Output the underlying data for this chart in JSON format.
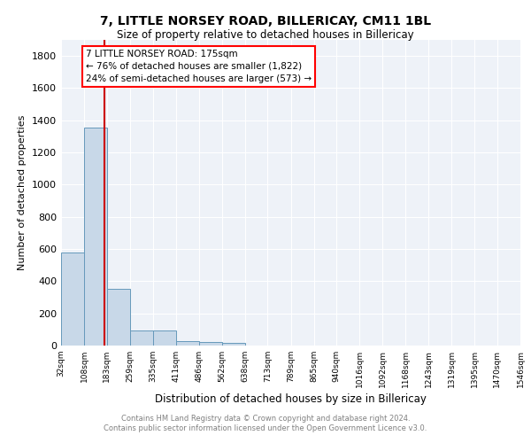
{
  "title": "7, LITTLE NORSEY ROAD, BILLERICAY, CM11 1BL",
  "subtitle": "Size of property relative to detached houses in Billericay",
  "xlabel": "Distribution of detached houses by size in Billericay",
  "ylabel": "Number of detached properties",
  "bin_edges": [
    32,
    108,
    183,
    259,
    335,
    411,
    486,
    562,
    638,
    713,
    789,
    865,
    940,
    1016,
    1092,
    1168,
    1243,
    1319,
    1395,
    1470,
    1546
  ],
  "bin_labels": [
    "32sqm",
    "108sqm",
    "183sqm",
    "259sqm",
    "335sqm",
    "411sqm",
    "486sqm",
    "562sqm",
    "638sqm",
    "713sqm",
    "789sqm",
    "865sqm",
    "940sqm",
    "1016sqm",
    "1092sqm",
    "1168sqm",
    "1243sqm",
    "1319sqm",
    "1395sqm",
    "1470sqm",
    "1546sqm"
  ],
  "bar_heights": [
    580,
    1355,
    350,
    95,
    95,
    30,
    20,
    18,
    0,
    0,
    0,
    0,
    0,
    0,
    0,
    0,
    0,
    0,
    0,
    0
  ],
  "bar_color": "#c8d8e8",
  "bar_edge_color": "#6699bb",
  "ylim": [
    0,
    1900
  ],
  "yticks": [
    0,
    200,
    400,
    600,
    800,
    1000,
    1200,
    1400,
    1600,
    1800
  ],
  "property_line_x": 175,
  "property_line_color": "#cc0000",
  "annotation_box_text": "7 LITTLE NORSEY ROAD: 175sqm\n← 76% of detached houses are smaller (1,822)\n24% of semi-detached houses are larger (573) →",
  "background_color": "#eef2f8",
  "grid_color": "#ffffff",
  "footer_line1": "Contains HM Land Registry data © Crown copyright and database right 2024.",
  "footer_line2": "Contains public sector information licensed under the Open Government Licence v3.0."
}
